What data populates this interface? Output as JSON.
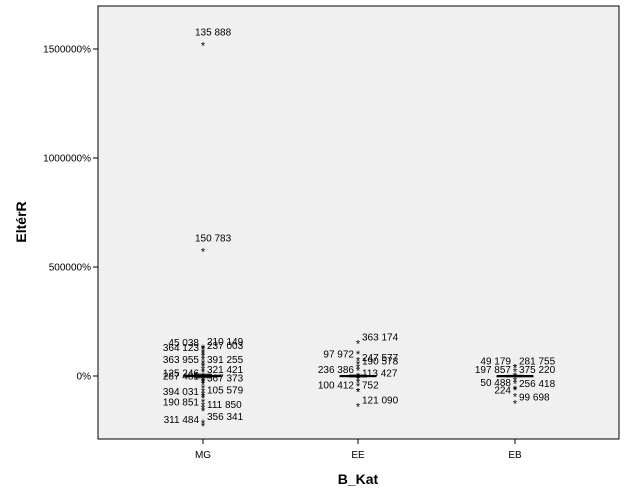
{
  "chart_data": {
    "type": "boxplot",
    "xlabel": "B_Kat",
    "ylabel": "EltérR",
    "categories": [
      "MG",
      "EE",
      "EB"
    ],
    "y_unit": "%",
    "ylim": [
      -300000,
      1650000
    ],
    "y_ticks": [
      {
        "value": 0,
        "label": "0%"
      },
      {
        "value": 500000,
        "label": "500000%"
      },
      {
        "value": 1000000,
        "label": "1000000%"
      },
      {
        "value": 1500000,
        "label": "1500000%"
      }
    ],
    "grid": false,
    "legend": "none",
    "boxes": [
      {
        "category": "MG",
        "whisker_low": -8000,
        "q1": -3000,
        "median": 0,
        "q3": 3000,
        "whisker_high": 8000
      },
      {
        "category": "EE",
        "whisker_low": -4000,
        "q1": -1500,
        "median": 0,
        "q3": 1500,
        "whisker_high": 4000
      },
      {
        "category": "EB",
        "whisker_low": -3000,
        "q1": -1000,
        "median": 0,
        "q3": 1000,
        "whisker_high": 3000
      }
    ],
    "outliers": [
      {
        "category": "MG",
        "y": 1515000,
        "label": "135 888",
        "side": "right"
      },
      {
        "category": "MG",
        "y": 570000,
        "label": "150 783",
        "side": "right"
      },
      {
        "category": "MG",
        "y": 129000,
        "label": "210 149",
        "side": "right"
      },
      {
        "category": "MG",
        "y": 125000,
        "label": "45 038",
        "side": "left"
      },
      {
        "category": "MG",
        "y": 110000,
        "label": "237 003",
        "side": "right"
      },
      {
        "category": "MG",
        "y": 100000,
        "label": "364 123",
        "side": "left"
      },
      {
        "category": "MG",
        "y": 45000,
        "label": "363 955",
        "side": "left"
      },
      {
        "category": "MG",
        "y": 45000,
        "label": "391 255",
        "side": "right"
      },
      {
        "category": "MG",
        "y": 0,
        "label": "321 421",
        "side": "right"
      },
      {
        "category": "MG",
        "y": -15000,
        "label": "125 246",
        "side": "left"
      },
      {
        "category": "MG",
        "y": -40000,
        "label": "367 373",
        "side": "right"
      },
      {
        "category": "MG",
        "y": -30000,
        "label": "287 481",
        "side": "left"
      },
      {
        "category": "MG",
        "y": -95000,
        "label": "105 579",
        "side": "right"
      },
      {
        "category": "MG",
        "y": -102000,
        "label": "394 031",
        "side": "left"
      },
      {
        "category": "MG",
        "y": -150000,
        "label": "190 851",
        "side": "left"
      },
      {
        "category": "MG",
        "y": -160000,
        "label": "111 850",
        "side": "right"
      },
      {
        "category": "MG",
        "y": -215000,
        "label": "356 341",
        "side": "right"
      },
      {
        "category": "MG",
        "y": -230000,
        "label": "311 484",
        "side": "left"
      },
      {
        "category": "EE",
        "y": 150000,
        "label": "363 174",
        "side": "right"
      },
      {
        "category": "EE",
        "y": 70000,
        "label": "97 972",
        "side": "left"
      },
      {
        "category": "EE",
        "y": 55000,
        "label": "247 577",
        "side": "right"
      },
      {
        "category": "EE",
        "y": 40000,
        "label": "190 578",
        "side": "right"
      },
      {
        "category": "EE",
        "y": 0,
        "label": "236 386",
        "side": "left"
      },
      {
        "category": "EE",
        "y": -15000,
        "label": "113 427",
        "side": "right"
      },
      {
        "category": "EE",
        "y": -70000,
        "label": "100 412",
        "side": "left"
      },
      {
        "category": "EE",
        "y": -70000,
        "label": "752",
        "side": "right"
      },
      {
        "category": "EE",
        "y": -140000,
        "label": "121 090",
        "side": "right"
      },
      {
        "category": "EB",
        "y": 40000,
        "label": "49 179",
        "side": "left"
      },
      {
        "category": "EB",
        "y": 40000,
        "label": "281 755",
        "side": "right"
      },
      {
        "category": "EB",
        "y": 0,
        "label": "197 857",
        "side": "left"
      },
      {
        "category": "EB",
        "y": 0,
        "label": "375 220",
        "side": "right"
      },
      {
        "category": "EB",
        "y": -60000,
        "label": "50 488",
        "side": "left"
      },
      {
        "category": "EB",
        "y": -65000,
        "label": "256 418",
        "side": "right"
      },
      {
        "category": "EB",
        "y": -95000,
        "label": "224",
        "side": "left"
      },
      {
        "category": "EB",
        "y": -125000,
        "label": "99 698",
        "side": "right"
      }
    ],
    "cluster_points": [
      {
        "category": "MG",
        "y": 90000
      },
      {
        "category": "MG",
        "y": 75000
      },
      {
        "category": "MG",
        "y": 60000
      },
      {
        "category": "MG",
        "y": 30000
      },
      {
        "category": "MG",
        "y": 18000
      },
      {
        "category": "MG",
        "y": -25000
      },
      {
        "category": "MG",
        "y": -55000
      },
      {
        "category": "MG",
        "y": -70000
      },
      {
        "category": "MG",
        "y": -85000
      },
      {
        "category": "MG",
        "y": -120000
      },
      {
        "category": "MG",
        "y": -135000
      },
      {
        "category": "EE",
        "y": 100000
      },
      {
        "category": "EE",
        "y": 25000
      },
      {
        "category": "EE",
        "y": -30000
      },
      {
        "category": "EE",
        "y": -45000
      },
      {
        "category": "EB",
        "y": 20000
      },
      {
        "category": "EB",
        "y": -20000
      },
      {
        "category": "EB",
        "y": -35000
      }
    ],
    "colors": {
      "plot_background": "#f0f0f0",
      "marks": "#000000"
    }
  }
}
